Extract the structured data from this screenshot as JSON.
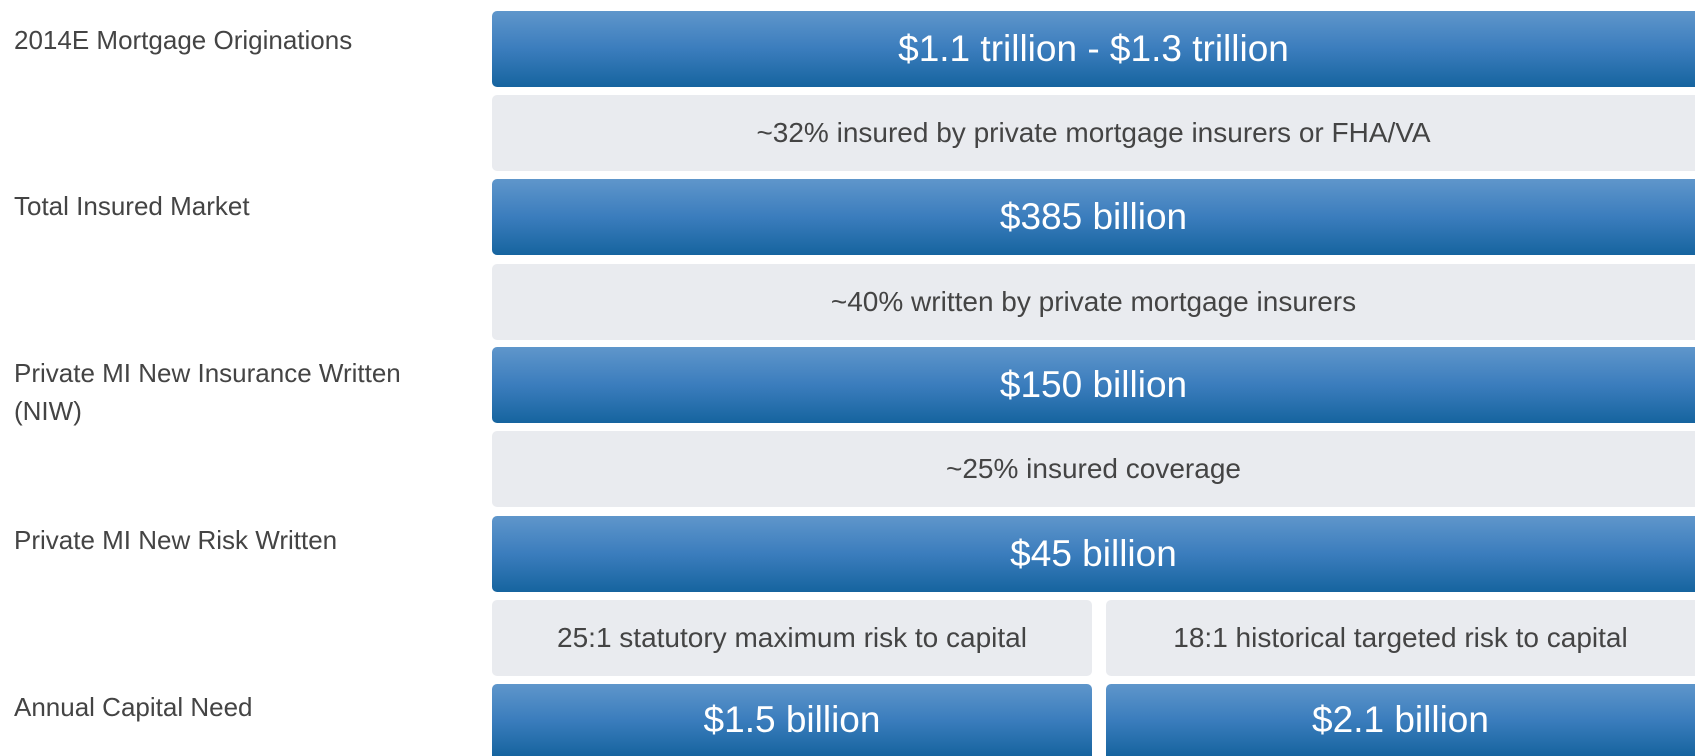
{
  "labels": [
    "2014E Mortgage Originations",
    "Total Insured Market",
    "Private MI New Insurance Written (NIW)",
    "Private MI New Risk Written",
    "Annual Capital Need"
  ],
  "rows": [
    [
      "$1.1 trillion - $1.3 trillion"
    ],
    [
      "~32% insured by private mortgage insurers or FHA/VA"
    ],
    [
      "$385 billion"
    ],
    [
      "~40% written by private mortgage insurers"
    ],
    [
      "$150 billion"
    ],
    [
      "~25% insured coverage"
    ],
    [
      "$45 billion"
    ],
    [
      "25:1 statutory maximum risk to capital",
      "18:1 historical targeted risk to capital"
    ],
    [
      "$1.5 billion",
      "$2.1 billion"
    ]
  ]
}
